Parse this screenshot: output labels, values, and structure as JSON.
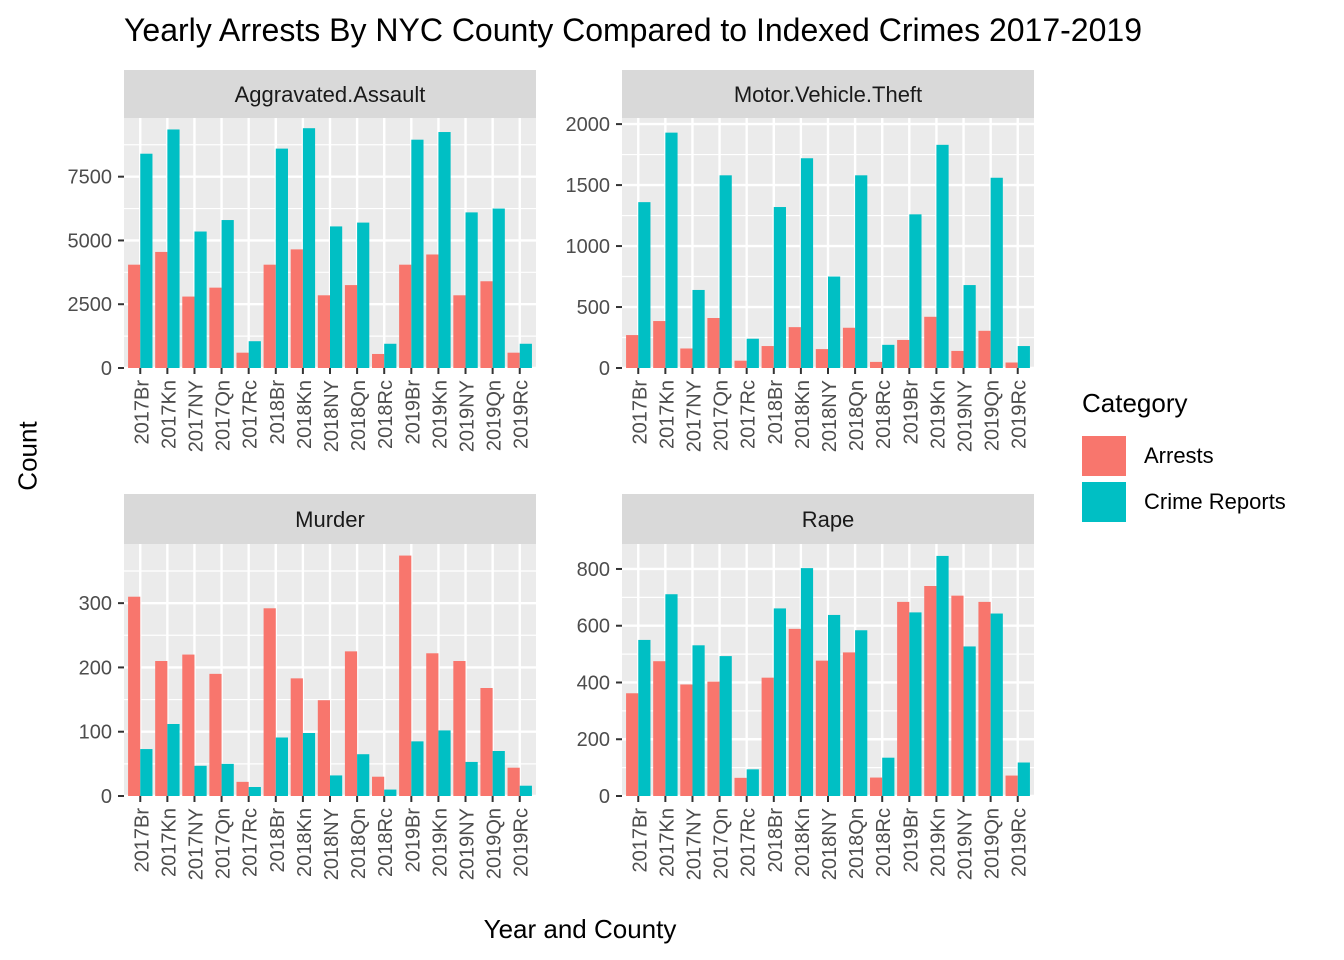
{
  "title": "Yearly Arrests By NYC County Compared to Indexed Crimes 2017-2019",
  "xlabel": "Year and County",
  "ylabel": "Count",
  "legend": {
    "title": "Category",
    "items": [
      {
        "label": "Arrests",
        "color": "#F8766D"
      },
      {
        "label": "Crime Reports",
        "color": "#00BFC4"
      }
    ]
  },
  "chart_data": {
    "type": "bar",
    "layout": "facet-grid 2x2, grouped bars, legend right",
    "categories": [
      "2017Br",
      "2017Kn",
      "2017NY",
      "2017Qn",
      "2017Rc",
      "2018Br",
      "2018Kn",
      "2018NY",
      "2018Qn",
      "2018Rc",
      "2019Br",
      "2019Kn",
      "2019NY",
      "2019Qn",
      "2019Rc"
    ],
    "facets": [
      {
        "title": "Aggravated.Assault",
        "ylim": [
          0,
          9800
        ],
        "yticks": [
          0,
          2500,
          5000,
          7500
        ],
        "series": [
          {
            "name": "Arrests",
            "values": [
              4050,
              4550,
              2800,
              3150,
              600,
              4050,
              4650,
              2850,
              3250,
              550,
              4050,
              4450,
              2850,
              3400,
              600
            ]
          },
          {
            "name": "Crime Reports",
            "values": [
              8400,
              9350,
              5350,
              5800,
              1050,
              8600,
              9400,
              5550,
              5700,
              950,
              8950,
              9250,
              6100,
              6250,
              950
            ]
          }
        ]
      },
      {
        "title": "Motor.Vehicle.Theft",
        "ylim": [
          0,
          2050
        ],
        "yticks": [
          0,
          500,
          1000,
          1500,
          2000
        ],
        "series": [
          {
            "name": "Arrests",
            "values": [
              270,
              385,
              160,
              410,
              60,
              180,
              335,
              155,
              330,
              50,
              230,
              420,
              140,
              305,
              45
            ]
          },
          {
            "name": "Crime Reports",
            "values": [
              1360,
              1930,
              640,
              1580,
              240,
              1320,
              1720,
              750,
              1580,
              190,
              1260,
              1830,
              680,
              1560,
              180
            ]
          }
        ]
      },
      {
        "title": "Murder",
        "ylim": [
          0,
          392
        ],
        "yticks": [
          0,
          100,
          200,
          300
        ],
        "series": [
          {
            "name": "Arrests",
            "values": [
              310,
              210,
              220,
              190,
              22,
              292,
              183,
              149,
              225,
              30,
              374,
              222,
              210,
              168,
              44
            ]
          },
          {
            "name": "Crime Reports",
            "values": [
              73,
              112,
              47,
              50,
              14,
              91,
              98,
              32,
              65,
              10,
              85,
              102,
              53,
              70,
              16
            ]
          }
        ]
      },
      {
        "title": "Rape",
        "ylim": [
          0,
          888
        ],
        "yticks": [
          0,
          200,
          400,
          600,
          800
        ],
        "series": [
          {
            "name": "Arrests",
            "values": [
              362,
              475,
              393,
              403,
              64,
              417,
              589,
              477,
              506,
              65,
              684,
              740,
              706,
              684,
              72
            ]
          },
          {
            "name": "Crime Reports",
            "values": [
              550,
              711,
              531,
              493,
              94,
              661,
              803,
              638,
              584,
              135,
              647,
              846,
              527,
              643,
              118
            ]
          }
        ]
      }
    ]
  }
}
